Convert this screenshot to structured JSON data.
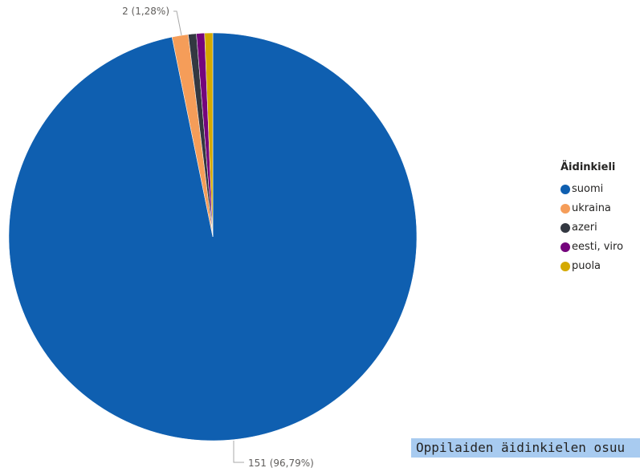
{
  "chart_data": {
    "type": "pie",
    "legend_title": "Äidinkieli",
    "legend_position": "right",
    "categories": [
      "suomi",
      "ukraina",
      "azeri",
      "eesti, viro",
      "puola"
    ],
    "values": [
      151,
      2,
      1,
      1,
      1
    ],
    "colors": [
      "#0f5fb0",
      "#f59d59",
      "#333841",
      "#74047c",
      "#d4a900"
    ],
    "data_labels": [
      {
        "category": "suomi",
        "text": "151 (96,79%)"
      },
      {
        "category": "ukraina",
        "text": "2 (1,28%)"
      }
    ]
  },
  "footer": {
    "title": "Oppilaiden äidinkielen osuu"
  }
}
